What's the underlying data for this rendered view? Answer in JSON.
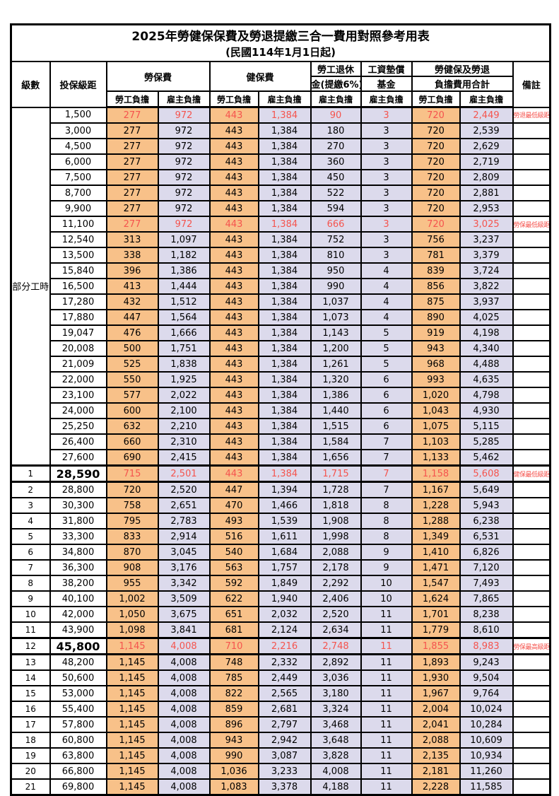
{
  "title": "2025年勞健保保費及勞退提繳三合一費用對照參考用表",
  "subtitle": "(民國114年1月1日起)",
  "colors": {
    "employee_bg": "#F8C189",
    "employer_bg": "#DCDAEC",
    "highlight_red": "#F5544E",
    "border": "#000000"
  },
  "header": {
    "level": "級數",
    "bracket": "投保級距",
    "labor_insurance": "勞保費",
    "health_insurance": "健保費",
    "pension_line1": "勞工退休",
    "pension_line2": "金(提繳6%)",
    "wage_fund_line1": "工資墊償",
    "wage_fund_line2": "基金",
    "total_line1": "勞健保及勞退",
    "total_line2": "負擔費用合計",
    "remark": "備註",
    "employee_label": "勞工負擔",
    "employer_label": "雇主負擔"
  },
  "part_time_label": "部分工時",
  "rows": [
    {
      "level": "",
      "bracket": "1,500",
      "values": [
        "277",
        "972",
        "443",
        "1,384",
        "90",
        "3",
        "720",
        "2,449"
      ],
      "remark": "勞退最低級距",
      "red": true,
      "emphasis": false
    },
    {
      "level": "",
      "bracket": "3,000",
      "values": [
        "277",
        "972",
        "443",
        "1,384",
        "180",
        "3",
        "720",
        "2,539"
      ],
      "remark": "",
      "red": false,
      "emphasis": false
    },
    {
      "level": "",
      "bracket": "4,500",
      "values": [
        "277",
        "972",
        "443",
        "1,384",
        "270",
        "3",
        "720",
        "2,629"
      ],
      "remark": "",
      "red": false,
      "emphasis": false
    },
    {
      "level": "",
      "bracket": "6,000",
      "values": [
        "277",
        "972",
        "443",
        "1,384",
        "360",
        "3",
        "720",
        "2,719"
      ],
      "remark": "",
      "red": false,
      "emphasis": false
    },
    {
      "level": "",
      "bracket": "7,500",
      "values": [
        "277",
        "972",
        "443",
        "1,384",
        "450",
        "3",
        "720",
        "2,809"
      ],
      "remark": "",
      "red": false,
      "emphasis": false
    },
    {
      "level": "",
      "bracket": "8,700",
      "values": [
        "277",
        "972",
        "443",
        "1,384",
        "522",
        "3",
        "720",
        "2,881"
      ],
      "remark": "",
      "red": false,
      "emphasis": false
    },
    {
      "level": "",
      "bracket": "9,900",
      "values": [
        "277",
        "972",
        "443",
        "1,384",
        "594",
        "3",
        "720",
        "2,953"
      ],
      "remark": "",
      "red": false,
      "emphasis": false
    },
    {
      "level": "",
      "bracket": "11,100",
      "values": [
        "277",
        "972",
        "443",
        "1,384",
        "666",
        "3",
        "720",
        "3,025"
      ],
      "remark": "勞保最低級距",
      "red": true,
      "emphasis": false
    },
    {
      "level": "",
      "bracket": "12,540",
      "values": [
        "313",
        "1,097",
        "443",
        "1,384",
        "752",
        "3",
        "756",
        "3,237"
      ],
      "remark": "",
      "red": false,
      "emphasis": false
    },
    {
      "level": "",
      "bracket": "13,500",
      "values": [
        "338",
        "1,182",
        "443",
        "1,384",
        "810",
        "3",
        "781",
        "3,379"
      ],
      "remark": "",
      "red": false,
      "emphasis": false
    },
    {
      "level": "",
      "bracket": "15,840",
      "values": [
        "396",
        "1,386",
        "443",
        "1,384",
        "950",
        "4",
        "839",
        "3,724"
      ],
      "remark": "",
      "red": false,
      "emphasis": false
    },
    {
      "level": "",
      "bracket": "16,500",
      "values": [
        "413",
        "1,444",
        "443",
        "1,384",
        "990",
        "4",
        "856",
        "3,822"
      ],
      "remark": "",
      "red": false,
      "emphasis": false
    },
    {
      "level": "",
      "bracket": "17,280",
      "values": [
        "432",
        "1,512",
        "443",
        "1,384",
        "1,037",
        "4",
        "875",
        "3,937"
      ],
      "remark": "",
      "red": false,
      "emphasis": false
    },
    {
      "level": "",
      "bracket": "17,880",
      "values": [
        "447",
        "1,564",
        "443",
        "1,384",
        "1,073",
        "4",
        "890",
        "4,025"
      ],
      "remark": "",
      "red": false,
      "emphasis": false
    },
    {
      "level": "",
      "bracket": "19,047",
      "values": [
        "476",
        "1,666",
        "443",
        "1,384",
        "1,143",
        "5",
        "919",
        "4,198"
      ],
      "remark": "",
      "red": false,
      "emphasis": false
    },
    {
      "level": "",
      "bracket": "20,008",
      "values": [
        "500",
        "1,751",
        "443",
        "1,384",
        "1,200",
        "5",
        "943",
        "4,340"
      ],
      "remark": "",
      "red": false,
      "emphasis": false
    },
    {
      "level": "",
      "bracket": "21,009",
      "values": [
        "525",
        "1,838",
        "443",
        "1,384",
        "1,261",
        "5",
        "968",
        "4,488"
      ],
      "remark": "",
      "red": false,
      "emphasis": false
    },
    {
      "level": "",
      "bracket": "22,000",
      "values": [
        "550",
        "1,925",
        "443",
        "1,384",
        "1,320",
        "6",
        "993",
        "4,635"
      ],
      "remark": "",
      "red": false,
      "emphasis": false
    },
    {
      "level": "",
      "bracket": "23,100",
      "values": [
        "577",
        "2,022",
        "443",
        "1,384",
        "1,386",
        "6",
        "1,020",
        "4,798"
      ],
      "remark": "",
      "red": false,
      "emphasis": false
    },
    {
      "level": "",
      "bracket": "24,000",
      "values": [
        "600",
        "2,100",
        "443",
        "1,384",
        "1,440",
        "6",
        "1,043",
        "4,930"
      ],
      "remark": "",
      "red": false,
      "emphasis": false
    },
    {
      "level": "",
      "bracket": "25,250",
      "values": [
        "632",
        "2,210",
        "443",
        "1,384",
        "1,515",
        "6",
        "1,075",
        "5,115"
      ],
      "remark": "",
      "red": false,
      "emphasis": false
    },
    {
      "level": "",
      "bracket": "26,400",
      "values": [
        "660",
        "2,310",
        "443",
        "1,384",
        "1,584",
        "7",
        "1,103",
        "5,285"
      ],
      "remark": "",
      "red": false,
      "emphasis": false
    },
    {
      "level": "",
      "bracket": "27,600",
      "values": [
        "690",
        "2,415",
        "443",
        "1,384",
        "1,656",
        "7",
        "1,133",
        "5,462"
      ],
      "remark": "",
      "red": false,
      "emphasis": false
    },
    {
      "level": "1",
      "bracket": "28,590",
      "values": [
        "715",
        "2,501",
        "443",
        "1,384",
        "1,715",
        "7",
        "1,158",
        "5,608"
      ],
      "remark": "健保最低級距",
      "red": true,
      "emphasis": true
    },
    {
      "level": "2",
      "bracket": "28,800",
      "values": [
        "720",
        "2,520",
        "447",
        "1,394",
        "1,728",
        "7",
        "1,167",
        "5,649"
      ],
      "remark": "",
      "red": false,
      "emphasis": false
    },
    {
      "level": "3",
      "bracket": "30,300",
      "values": [
        "758",
        "2,651",
        "470",
        "1,466",
        "1,818",
        "8",
        "1,228",
        "5,943"
      ],
      "remark": "",
      "red": false,
      "emphasis": false
    },
    {
      "level": "4",
      "bracket": "31,800",
      "values": [
        "795",
        "2,783",
        "493",
        "1,539",
        "1,908",
        "8",
        "1,288",
        "6,238"
      ],
      "remark": "",
      "red": false,
      "emphasis": false
    },
    {
      "level": "5",
      "bracket": "33,300",
      "values": [
        "833",
        "2,914",
        "516",
        "1,611",
        "1,998",
        "8",
        "1,349",
        "6,531"
      ],
      "remark": "",
      "red": false,
      "emphasis": false
    },
    {
      "level": "6",
      "bracket": "34,800",
      "values": [
        "870",
        "3,045",
        "540",
        "1,684",
        "2,088",
        "9",
        "1,410",
        "6,826"
      ],
      "remark": "",
      "red": false,
      "emphasis": false
    },
    {
      "level": "7",
      "bracket": "36,300",
      "values": [
        "908",
        "3,176",
        "563",
        "1,757",
        "2,178",
        "9",
        "1,471",
        "7,120"
      ],
      "remark": "",
      "red": false,
      "emphasis": false
    },
    {
      "level": "8",
      "bracket": "38,200",
      "values": [
        "955",
        "3,342",
        "592",
        "1,849",
        "2,292",
        "10",
        "1,547",
        "7,493"
      ],
      "remark": "",
      "red": false,
      "emphasis": false
    },
    {
      "level": "9",
      "bracket": "40,100",
      "values": [
        "1,002",
        "3,509",
        "622",
        "1,940",
        "2,406",
        "10",
        "1,624",
        "7,865"
      ],
      "remark": "",
      "red": false,
      "emphasis": false
    },
    {
      "level": "10",
      "bracket": "42,000",
      "values": [
        "1,050",
        "3,675",
        "651",
        "2,032",
        "2,520",
        "11",
        "1,701",
        "8,238"
      ],
      "remark": "",
      "red": false,
      "emphasis": false
    },
    {
      "level": "11",
      "bracket": "43,900",
      "values": [
        "1,098",
        "3,841",
        "681",
        "2,124",
        "2,634",
        "11",
        "1,779",
        "8,610"
      ],
      "remark": "",
      "red": false,
      "emphasis": false
    },
    {
      "level": "12",
      "bracket": "45,800",
      "values": [
        "1,145",
        "4,008",
        "710",
        "2,216",
        "2,748",
        "11",
        "1,855",
        "8,983"
      ],
      "remark": "勞保最高級距",
      "red": true,
      "emphasis": true
    },
    {
      "level": "13",
      "bracket": "48,200",
      "values": [
        "1,145",
        "4,008",
        "748",
        "2,332",
        "2,892",
        "11",
        "1,893",
        "9,243"
      ],
      "remark": "",
      "red": false,
      "emphasis": false
    },
    {
      "level": "14",
      "bracket": "50,600",
      "values": [
        "1,145",
        "4,008",
        "785",
        "2,449",
        "3,036",
        "11",
        "1,930",
        "9,504"
      ],
      "remark": "",
      "red": false,
      "emphasis": false
    },
    {
      "level": "15",
      "bracket": "53,000",
      "values": [
        "1,145",
        "4,008",
        "822",
        "2,565",
        "3,180",
        "11",
        "1,967",
        "9,764"
      ],
      "remark": "",
      "red": false,
      "emphasis": false
    },
    {
      "level": "16",
      "bracket": "55,400",
      "values": [
        "1,145",
        "4,008",
        "859",
        "2,681",
        "3,324",
        "11",
        "2,004",
        "10,024"
      ],
      "remark": "",
      "red": false,
      "emphasis": false
    },
    {
      "level": "17",
      "bracket": "57,800",
      "values": [
        "1,145",
        "4,008",
        "896",
        "2,797",
        "3,468",
        "11",
        "2,041",
        "10,284"
      ],
      "remark": "",
      "red": false,
      "emphasis": false
    },
    {
      "level": "18",
      "bracket": "60,800",
      "values": [
        "1,145",
        "4,008",
        "943",
        "2,942",
        "3,648",
        "11",
        "2,088",
        "10,609"
      ],
      "remark": "",
      "red": false,
      "emphasis": false
    },
    {
      "level": "19",
      "bracket": "63,800",
      "values": [
        "1,145",
        "4,008",
        "990",
        "3,087",
        "3,828",
        "11",
        "2,135",
        "10,934"
      ],
      "remark": "",
      "red": false,
      "emphasis": false
    },
    {
      "level": "20",
      "bracket": "66,800",
      "values": [
        "1,145",
        "4,008",
        "1,036",
        "3,233",
        "4,008",
        "11",
        "2,181",
        "11,260"
      ],
      "remark": "",
      "red": false,
      "emphasis": false
    },
    {
      "level": "21",
      "bracket": "69,800",
      "values": [
        "1,145",
        "4,008",
        "1,083",
        "3,378",
        "4,188",
        "11",
        "2,228",
        "11,585"
      ],
      "remark": "",
      "red": false,
      "emphasis": false
    }
  ]
}
